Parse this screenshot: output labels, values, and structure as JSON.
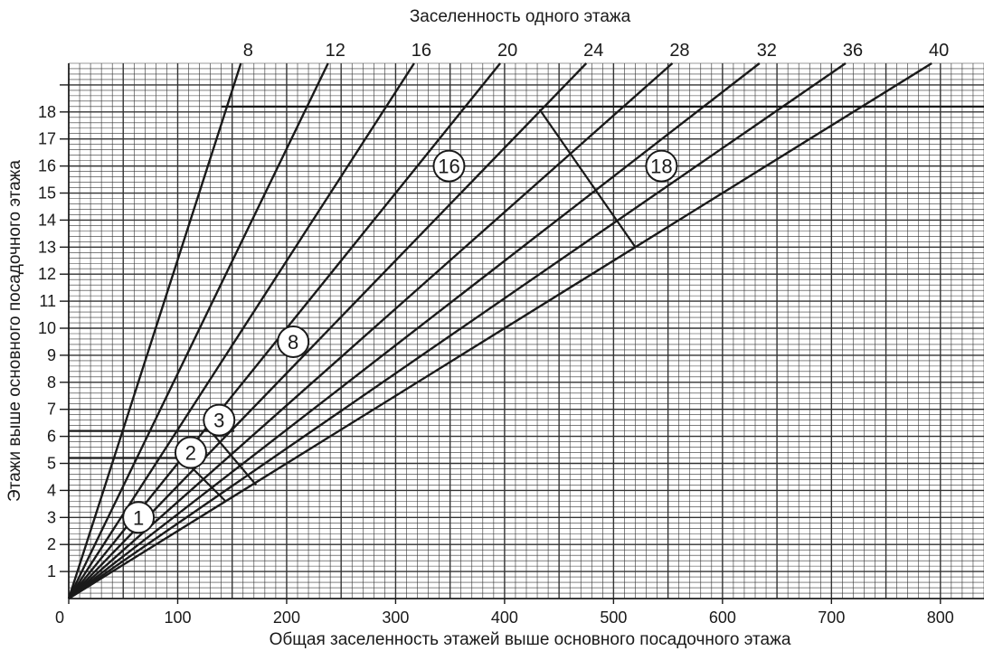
{
  "chart_data": {
    "type": "line",
    "title": "Заселенность одного этажа",
    "xlabel": "Общая заселенность этажей выше основного посадочного этажа",
    "ylabel": "Этажи выше основного посадочного этажа",
    "xlim": [
      0,
      840
    ],
    "ylim": [
      0,
      19.8
    ],
    "x_ticks": [
      "0",
      "100",
      "200",
      "300",
      "400",
      "500",
      "600",
      "700",
      "800"
    ],
    "y_ticks": [
      "1",
      "2",
      "3",
      "4",
      "5",
      "6",
      "7",
      "8",
      "9",
      "10",
      "11",
      "12",
      "13",
      "14",
      "15",
      "16",
      "17",
      "18"
    ],
    "grid": true,
    "series": [
      {
        "name": "8",
        "slope": 8,
        "x": [
          0,
          158
        ],
        "y": [
          0,
          19.8
        ]
      },
      {
        "name": "12",
        "slope": 12,
        "x": [
          0,
          238
        ],
        "y": [
          0,
          19.8
        ]
      },
      {
        "name": "16",
        "slope": 16,
        "x": [
          0,
          317
        ],
        "y": [
          0,
          19.8
        ]
      },
      {
        "name": "20",
        "slope": 20,
        "x": [
          0,
          396
        ],
        "y": [
          0,
          19.8
        ]
      },
      {
        "name": "24",
        "slope": 24,
        "x": [
          0,
          475
        ],
        "y": [
          0,
          19.8
        ]
      },
      {
        "name": "28",
        "slope": 28,
        "x": [
          0,
          554
        ],
        "y": [
          0,
          19.8
        ]
      },
      {
        "name": "32",
        "slope": 32,
        "x": [
          0,
          634
        ],
        "y": [
          0,
          19.8
        ]
      },
      {
        "name": "36",
        "slope": 36,
        "x": [
          0,
          713
        ],
        "y": [
          0,
          19.8
        ]
      },
      {
        "name": "40",
        "slope": 40,
        "x": [
          0,
          792
        ],
        "y": [
          0,
          19.8
        ]
      }
    ],
    "guide_lines": [
      {
        "x": [
          0,
          152
        ],
        "y": [
          6.2,
          6.2
        ]
      },
      {
        "x": [
          0,
          108
        ],
        "y": [
          5.2,
          5.2
        ]
      },
      {
        "x": [
          140,
          840
        ],
        "y": [
          18.2,
          18.2
        ]
      },
      {
        "x": [
          130,
          172
        ],
        "y": [
          6.2,
          4.2
        ]
      },
      {
        "x": [
          104,
          144
        ],
        "y": [
          5.2,
          3.6
        ]
      },
      {
        "x": [
          432,
          520
        ],
        "y": [
          18.1,
          13
        ]
      }
    ],
    "annotations": [
      {
        "label": "1",
        "x": 64,
        "y": 3
      },
      {
        "label": "2",
        "x": 112,
        "y": 5.4
      },
      {
        "label": "3",
        "x": 138,
        "y": 6.6
      },
      {
        "label": "8",
        "x": 206,
        "y": 9.5
      },
      {
        "label": "16",
        "x": 349,
        "y": 16
      },
      {
        "label": "18",
        "x": 544,
        "y": 16
      }
    ]
  }
}
